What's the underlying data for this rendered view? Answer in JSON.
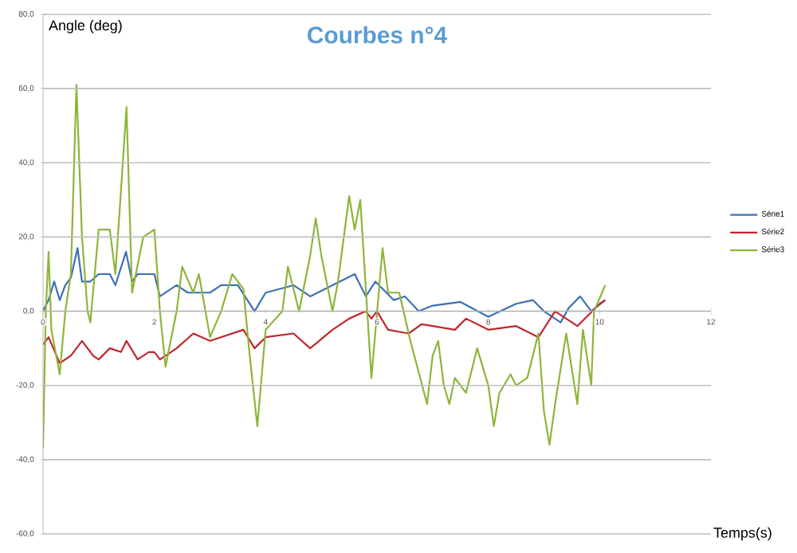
{
  "chart_data": {
    "type": "line",
    "title": "Courbes n°4",
    "xlabel": "Temps(s)",
    "ylabel": "Angle (deg)",
    "xlim": [
      0,
      12
    ],
    "xticks": [
      0,
      2,
      4,
      6,
      8,
      10,
      12
    ],
    "ylim": [
      -60,
      80
    ],
    "yticks": [
      {
        "value": -60,
        "label": "-60,0"
      },
      {
        "value": -40,
        "label": "-40,0"
      },
      {
        "value": -20,
        "label": "-20,0"
      },
      {
        "value": 0,
        "label": "0,0"
      },
      {
        "value": 20,
        "label": "20,0"
      },
      {
        "value": 40,
        "label": "40,0"
      },
      {
        "value": 60,
        "label": "60,0"
      },
      {
        "value": 80,
        "label": "80,0"
      }
    ],
    "grid": "y",
    "legend": "right",
    "marker": "none",
    "line_style": "solid",
    "series": [
      {
        "name": "Série1",
        "color": "#3e6fb5",
        "x": [
          0,
          0.1,
          0.2,
          0.3,
          0.4,
          0.5,
          0.62,
          0.7,
          0.85,
          1.0,
          1.2,
          1.3,
          1.49,
          1.6,
          1.7,
          2.0,
          2.1,
          2.4,
          2.6,
          3.0,
          3.2,
          3.5,
          3.8,
          4.0,
          4.5,
          4.8,
          5.6,
          5.8,
          5.97,
          6.3,
          6.5,
          6.75,
          7.0,
          7.5,
          8.0,
          8.5,
          8.8,
          9.0,
          9.3,
          9.45,
          9.65,
          9.85,
          10.1
        ],
        "values": [
          0,
          3,
          8,
          3,
          7,
          9,
          17,
          8,
          8,
          10,
          10,
          7,
          16,
          8,
          10,
          10,
          4,
          7,
          5,
          5,
          7,
          7,
          0,
          5,
          7,
          4,
          10,
          4,
          8,
          3,
          4,
          0,
          1.5,
          2.5,
          -1.5,
          2,
          3,
          0,
          -3,
          1,
          4,
          0,
          3
        ]
      },
      {
        "name": "Série2",
        "color": "#c0262d",
        "x": [
          0,
          0.1,
          0.3,
          0.5,
          0.7,
          0.9,
          1.0,
          1.2,
          1.4,
          1.5,
          1.7,
          1.9,
          2.0,
          2.1,
          2.4,
          2.7,
          3.0,
          3.4,
          3.6,
          3.8,
          4.0,
          4.5,
          4.8,
          5.2,
          5.5,
          5.8,
          5.9,
          6.0,
          6.2,
          6.57,
          6.8,
          7.0,
          7.4,
          7.6,
          8.0,
          8.5,
          8.9,
          9.2,
          9.4,
          9.6,
          9.8,
          10.0,
          10.1
        ],
        "values": [
          -9,
          -7,
          -14,
          -12,
          -8,
          -12,
          -13,
          -10,
          -11,
          -8,
          -13,
          -11,
          -11,
          -13,
          -10,
          -6,
          -8,
          -6,
          -5,
          -10,
          -7,
          -6,
          -10,
          -5,
          -2,
          0,
          -2,
          0,
          -5,
          -6,
          -3.5,
          -4,
          -5,
          -2,
          -5,
          -4,
          -7,
          0,
          -2,
          -4,
          -1,
          2,
          3
        ]
      },
      {
        "name": "Série3",
        "color": "#8db53a",
        "x": [
          0,
          0.05,
          0.1,
          0.15,
          0.3,
          0.4,
          0.5,
          0.6,
          0.7,
          0.8,
          0.85,
          1.0,
          1.2,
          1.3,
          1.5,
          1.6,
          1.8,
          2.0,
          2.1,
          2.2,
          2.4,
          2.5,
          2.7,
          2.8,
          3.0,
          3.2,
          3.4,
          3.6,
          3.7,
          3.85,
          4.0,
          4.3,
          4.4,
          4.6,
          4.8,
          4.9,
          5.0,
          5.2,
          5.3,
          5.5,
          5.6,
          5.7,
          5.9,
          6.1,
          6.2,
          6.4,
          6.6,
          6.9,
          7.0,
          7.1,
          7.2,
          7.3,
          7.4,
          7.6,
          7.8,
          8.0,
          8.1,
          8.2,
          8.4,
          8.5,
          8.7,
          8.9,
          9.0,
          9.1,
          9.2,
          9.4,
          9.6,
          9.7,
          9.85,
          9.9,
          10.1
        ],
        "values": [
          -37,
          0,
          16,
          -5,
          -17,
          0,
          10,
          61,
          20,
          0,
          -3,
          22,
          22,
          10,
          55,
          5,
          20,
          22,
          0,
          -15,
          0,
          12,
          5,
          10,
          -7,
          0,
          10,
          6,
          -10,
          -31,
          -5,
          0,
          12,
          0,
          15,
          25,
          15,
          0,
          8,
          31,
          22,
          30,
          -18,
          17,
          5,
          5,
          -8,
          -25,
          -12,
          -8,
          -20,
          -25,
          -18,
          -22,
          -10,
          -20,
          -31,
          -22,
          -17,
          -20,
          -18,
          -6,
          -27,
          -36,
          -25,
          -6,
          -25,
          -5,
          -20,
          0,
          7
        ]
      }
    ]
  }
}
